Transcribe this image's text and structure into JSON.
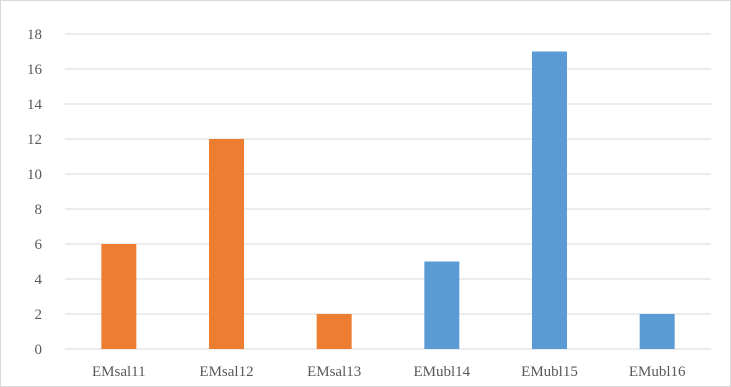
{
  "chart_data": {
    "type": "bar",
    "categories": [
      "EMsal11",
      "EMsal12",
      "EMsal13",
      "EMubl14",
      "EMubl15",
      "EMubl16"
    ],
    "values": [
      6,
      12,
      2,
      5,
      17,
      2
    ],
    "bar_colors": [
      "#ED7D31",
      "#ED7D31",
      "#ED7D31",
      "#5B9BD5",
      "#5B9BD5",
      "#5B9BD5"
    ],
    "ylim": [
      0,
      18
    ],
    "yticks": [
      0,
      2,
      4,
      6,
      8,
      10,
      12,
      14,
      16,
      18
    ],
    "grid": true,
    "gridline_color": "#d9d9d9",
    "title": "",
    "xlabel": "",
    "ylabel": ""
  }
}
